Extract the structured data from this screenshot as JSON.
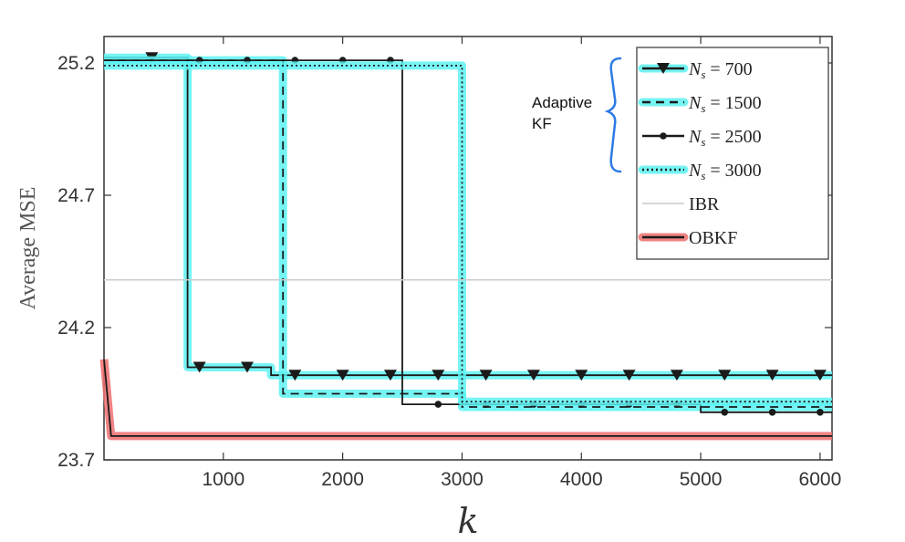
{
  "chart_data": {
    "type": "line",
    "xlabel": "k",
    "ylabel": "Average MSE",
    "xlim": [
      0,
      6100
    ],
    "ylim": [
      23.7,
      25.3
    ],
    "x_ticks": [
      1000,
      2000,
      3000,
      4000,
      5000,
      6000
    ],
    "y_ticks": [
      23.7,
      24.2,
      24.7,
      25.2
    ],
    "x_tick_labels": [
      "1000",
      "2000",
      "3000",
      "4000",
      "5000",
      "6000"
    ],
    "y_tick_labels": [
      "23.7",
      "24.2",
      "24.7",
      "25.2"
    ],
    "grid": false,
    "legend_position": "top-right",
    "annotation": {
      "line1": "Adaptive",
      "line2": "KF"
    },
    "series": [
      {
        "name": "N_s = 700",
        "legend_main": "N",
        "legend_sub": "s",
        "legend_rest": " = 700",
        "color": "#1a1a1a",
        "marker": "triangle-down",
        "linestyle": "solid",
        "glow": "#5ef2f2",
        "x": [
          0,
          700,
          700,
          1400,
          1400,
          6100
        ],
        "y": [
          25.22,
          25.22,
          24.05,
          24.05,
          24.02,
          24.02
        ],
        "markers_x": [
          400,
          800,
          1200,
          1600,
          2000,
          2400,
          2800,
          3200,
          3600,
          4000,
          4400,
          4800,
          5200,
          5600,
          6000
        ]
      },
      {
        "name": "N_s = 1500",
        "legend_main": "N",
        "legend_sub": "s",
        "legend_rest": " = 1500",
        "color": "#1a1a1a",
        "marker": "none",
        "linestyle": "dashed",
        "glow": "#5ef2f2",
        "x": [
          0,
          1500,
          1500,
          3000,
          3000,
          6100
        ],
        "y": [
          25.21,
          25.21,
          23.95,
          23.95,
          23.9,
          23.9
        ]
      },
      {
        "name": "N_s = 2500",
        "legend_main": "N",
        "legend_sub": "s",
        "legend_rest": " = 2500",
        "color": "#1a1a1a",
        "marker": "circle",
        "linestyle": "solid",
        "glow": "none",
        "x": [
          0,
          2500,
          2500,
          5000,
          5000,
          6100
        ],
        "y": [
          25.21,
          25.21,
          23.91,
          23.91,
          23.88,
          23.88
        ],
        "markers_x": [
          800,
          1200,
          1600,
          2000,
          2400,
          2800,
          3200,
          3600,
          4000,
          4400,
          4800,
          5200,
          5600,
          6000
        ]
      },
      {
        "name": "N_s = 3000",
        "legend_main": "N",
        "legend_sub": "s",
        "legend_rest": " = 3000",
        "color": "#1a1a1a",
        "marker": "none",
        "linestyle": "dotted",
        "glow": "#5ef2f2",
        "x": [
          0,
          3000,
          3000,
          6100
        ],
        "y": [
          25.19,
          25.19,
          23.92,
          23.92
        ]
      },
      {
        "name": "IBR",
        "legend_main": "IBR",
        "legend_sub": "",
        "legend_rest": "",
        "color": "#cccccc",
        "marker": "none",
        "linestyle": "solid",
        "glow": "none",
        "x": [
          0,
          6100
        ],
        "y": [
          24.38,
          24.38
        ]
      },
      {
        "name": "OBKF",
        "legend_main": "OBKF",
        "legend_sub": "",
        "legend_rest": "",
        "color": "#1a1a1a",
        "marker": "none",
        "linestyle": "solid",
        "glow": "#ee6e6e",
        "x": [
          0,
          60,
          6100
        ],
        "y": [
          24.08,
          23.79,
          23.79
        ]
      }
    ]
  }
}
